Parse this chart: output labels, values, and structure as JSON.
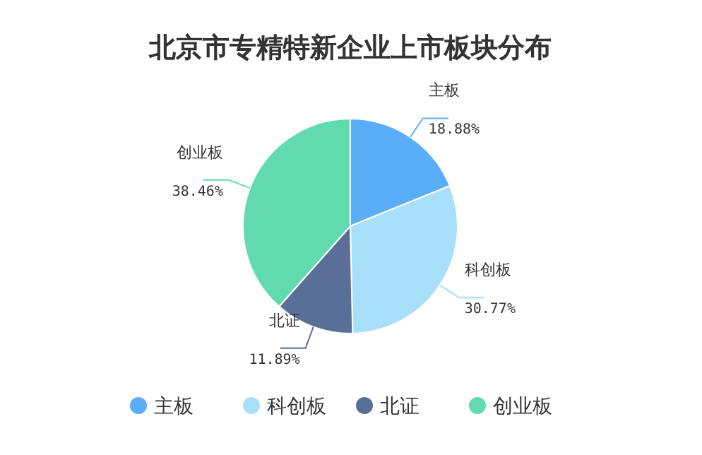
{
  "chart_data": {
    "type": "pie",
    "title": "北京市专精特新企业上市板块分布",
    "categories": [
      "主板",
      "科创板",
      "北证",
      "创业板"
    ],
    "values": [
      18.88,
      30.77,
      11.89,
      38.46
    ],
    "value_labels": [
      "18.88%",
      "30.77%",
      "11.89%",
      "38.46%"
    ],
    "colors": [
      "#5aaef7",
      "#a8dffb",
      "#5a6f98",
      "#62dab0"
    ],
    "legend": "bottom"
  }
}
